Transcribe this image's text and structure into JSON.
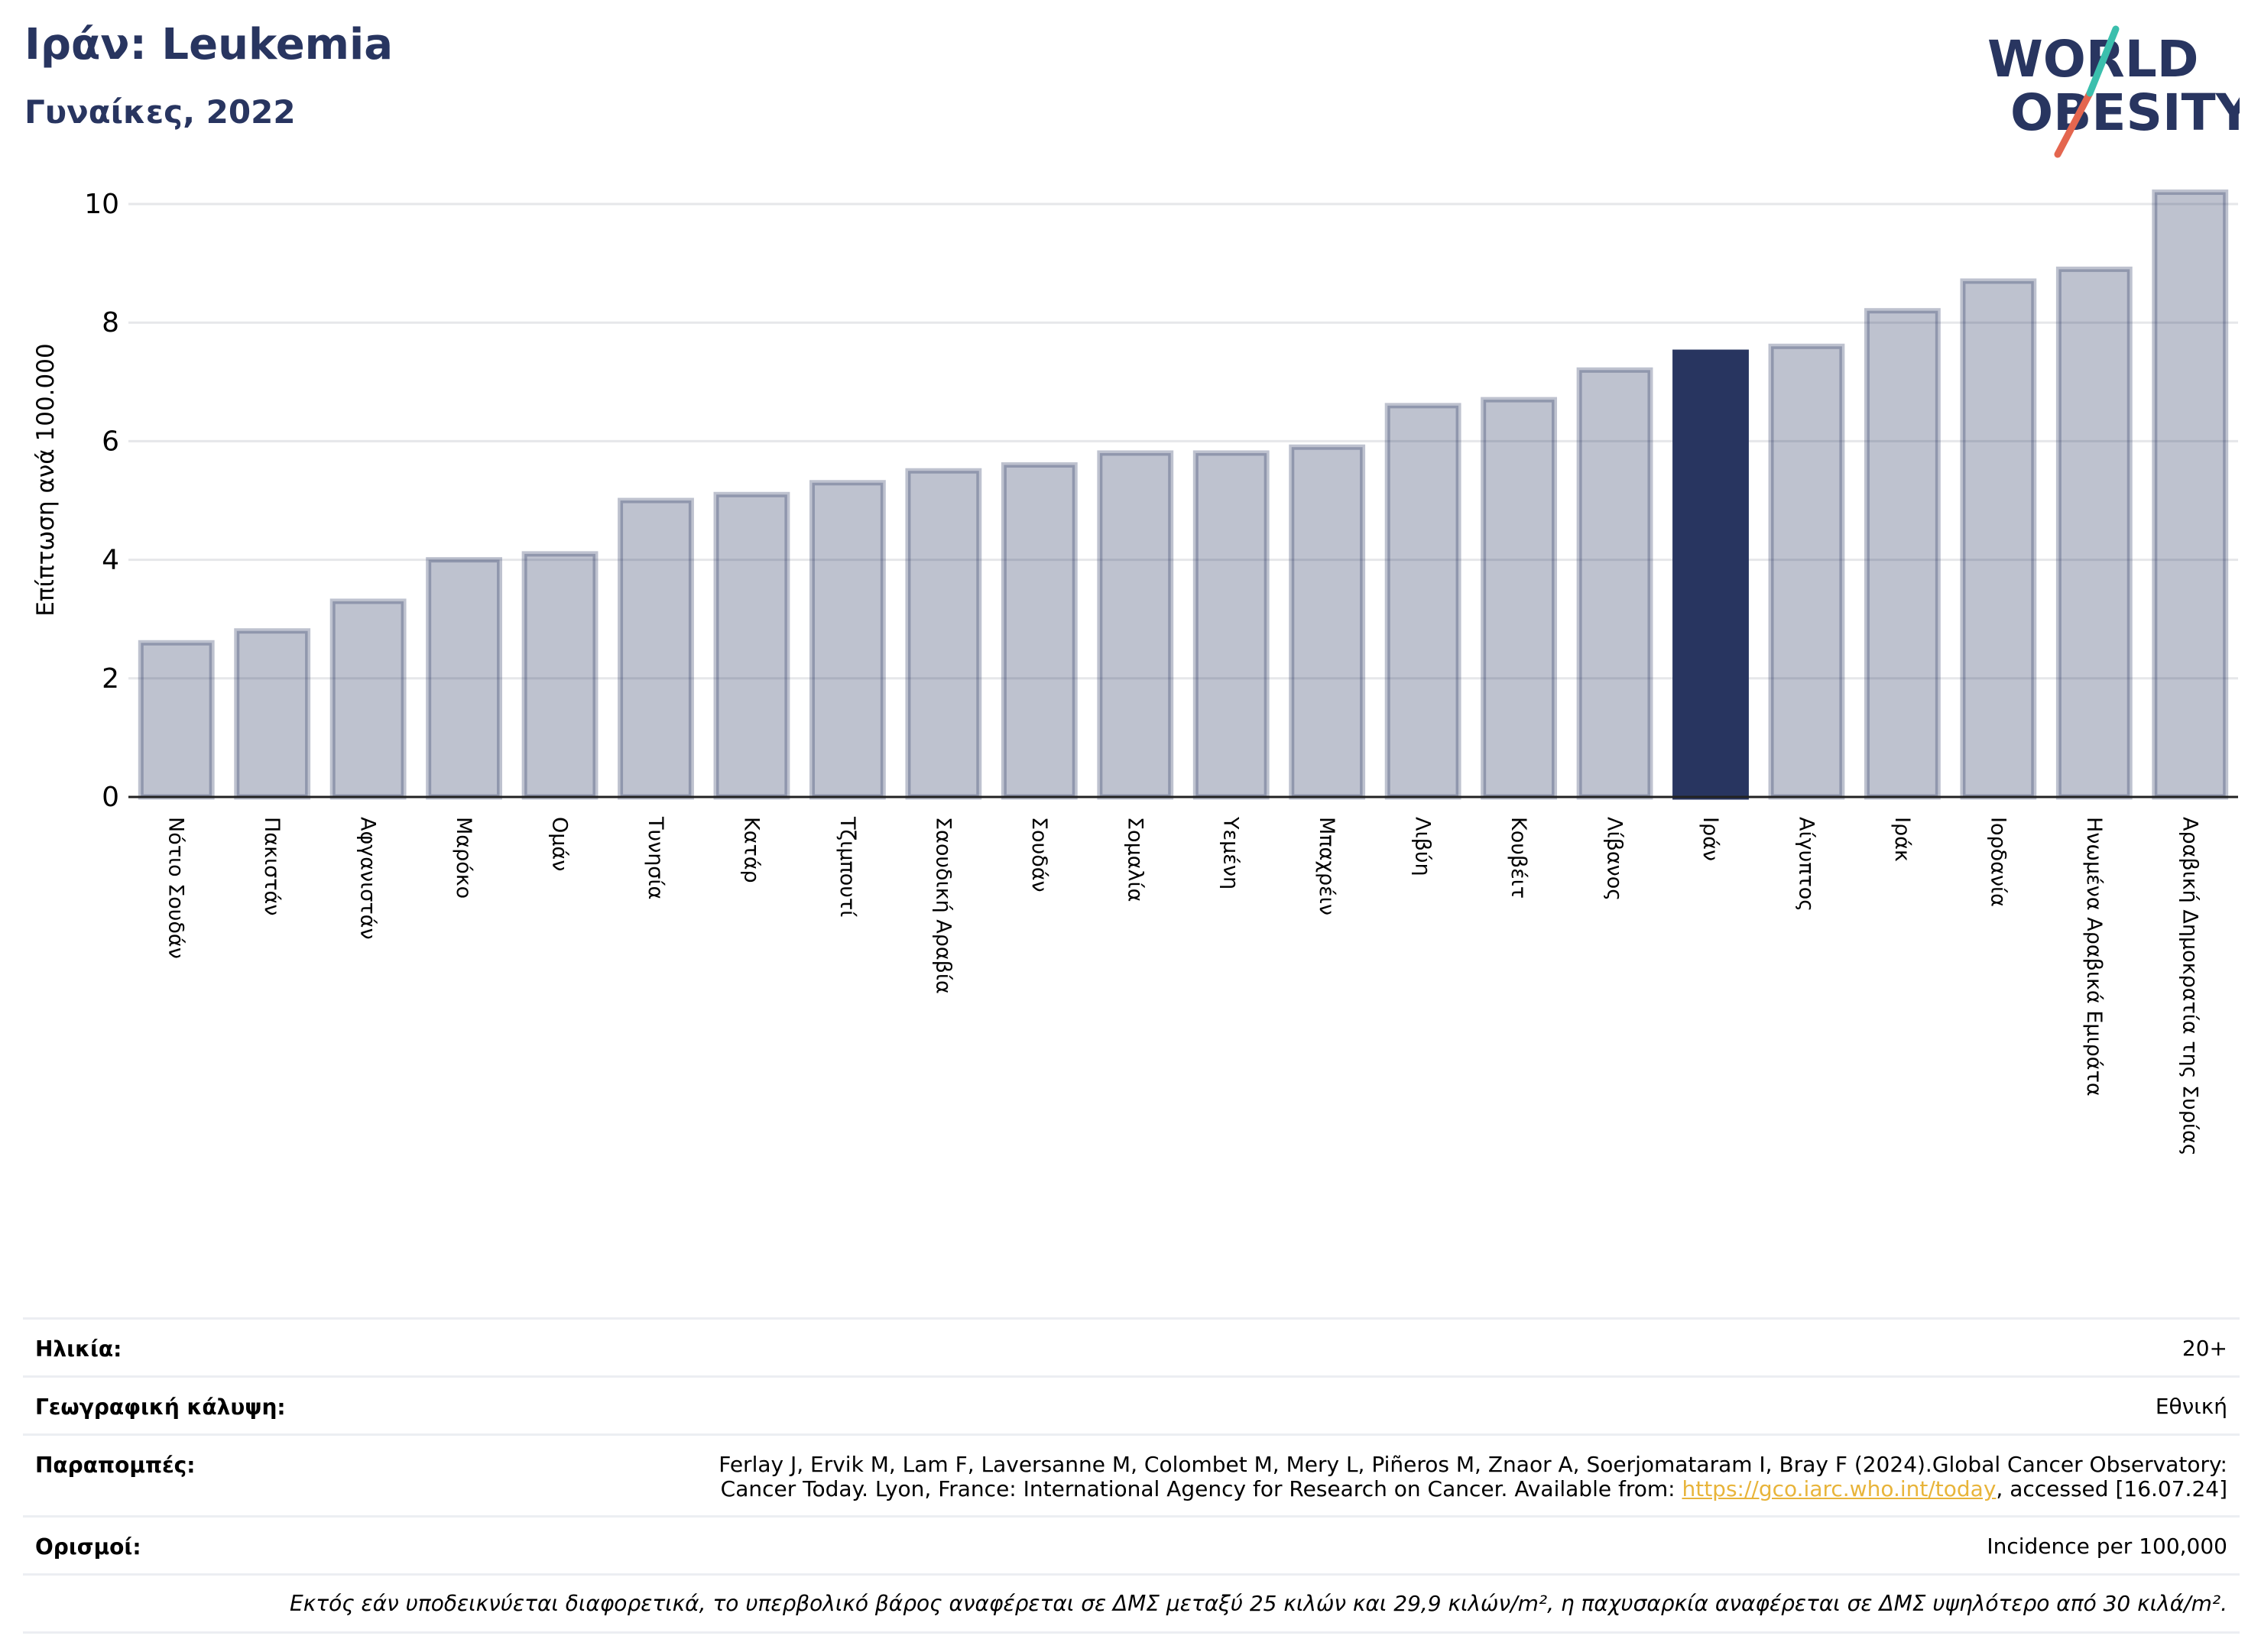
{
  "header": {
    "title": "Ιράν: Leukemia",
    "subtitle": "Γυναίκες, 2022"
  },
  "logo": {
    "line1": "WORLD",
    "line2": "OBESITY",
    "colors": {
      "text": "#283560",
      "slash_top": "#3bbfad",
      "slash_bottom": "#e4664f"
    }
  },
  "chart_data": {
    "type": "bar",
    "ylabel": "Επίπτωση ανά 100.000",
    "ylim": [
      0,
      10.4
    ],
    "yticks": [
      0,
      2,
      4,
      6,
      8,
      10
    ],
    "grid": true,
    "highlight": "Ιράν",
    "colors": {
      "bar": "#283560",
      "bar_opacity": 0.3,
      "highlight": "#283560"
    },
    "categories": [
      "Νότιο Σουδάν",
      "Πακιστάν",
      "Αφγανιστάν",
      "Μαρόκο",
      "Ομάν",
      "Τυνησία",
      "Κατάρ",
      "Τζιμπουτί",
      "Σαουδική Αραβία",
      "Σουδάν",
      "Σομαλία",
      "Υεμένη",
      "Μπαχρέιν",
      "Λιβύη",
      "Κουβέιτ",
      "Λίβανος",
      "Ιράν",
      "Αίγυπτος",
      "Ιράκ",
      "Ιορδανία",
      "Ηνωμένα Αραβικά Εμιράτα",
      "Αραβική Δημοκρατία της Συρίας"
    ],
    "values": [
      2.6,
      2.8,
      3.3,
      4.0,
      4.1,
      5.0,
      5.1,
      5.3,
      5.5,
      5.6,
      5.8,
      5.8,
      5.9,
      6.6,
      6.7,
      7.2,
      7.5,
      7.6,
      8.2,
      8.7,
      8.9,
      10.2
    ]
  },
  "info": {
    "age_label": "Ηλικία:",
    "age_value": "20+",
    "coverage_label": "Γεωγραφική κάλυψη:",
    "coverage_value": "Εθνική",
    "refs_label": "Παραπομπές:",
    "refs_line1": "Ferlay J, Ervik M, Lam F, Laversanne M, Colombet M, Mery L, Piñeros M, Znaor A, Soerjomataram I, Bray F (2024).Global Cancer Observatory:",
    "refs_line2_pre": "Cancer Today. Lyon, France: International Agency for Research on Cancer. Available from: ",
    "refs_link": "https://gco.iarc.who.int/today",
    "refs_line2_post": ", accessed [16.07.24]",
    "defs_label": "Ορισμοί:",
    "defs_value": "Incidence per 100,000",
    "note": "Εκτός εάν υποδεικνύεται διαφορετικά, το υπερβολικό βάρος αναφέρεται σε ΔΜΣ μεταξύ 25 κιλών και 29,9 κιλών/m², η παχυσαρκία αναφέρεται σε ΔΜΣ υψηλότερο από 30 κιλά/m²."
  }
}
